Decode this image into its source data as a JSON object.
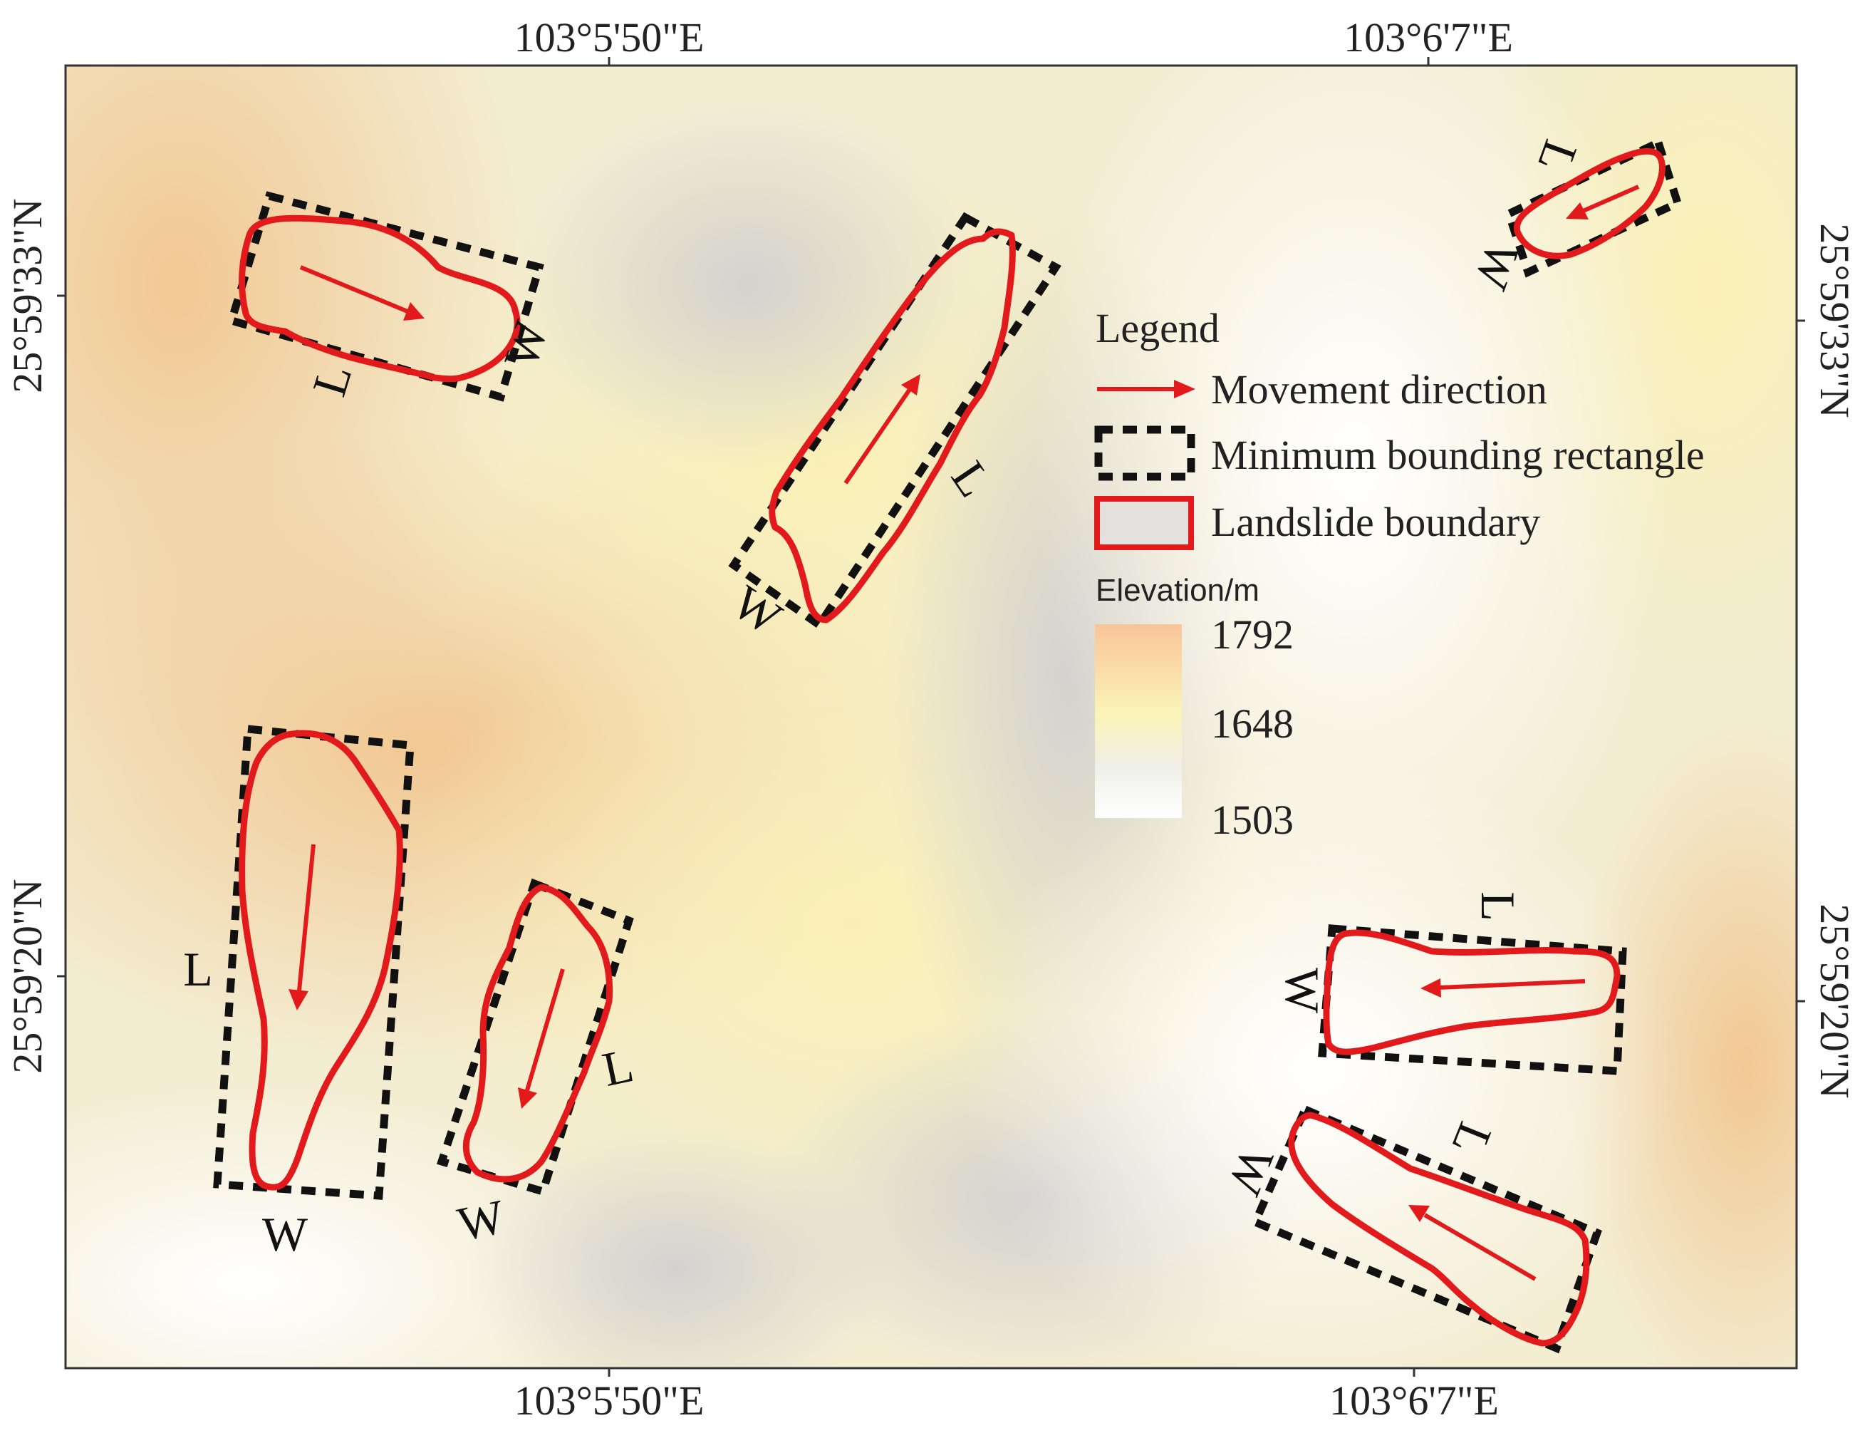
{
  "axes": {
    "top": [
      "103°5'50\"E",
      "103°6'7\"E"
    ],
    "bottom": [
      "103°5'50\"E",
      "103°6'7\"E"
    ],
    "left": [
      "25°59'33\"N",
      "25°59'20\"N"
    ],
    "right": [
      "25°59'33\"N",
      "25°59'20\"N"
    ]
  },
  "legend": {
    "title": "Legend",
    "items": [
      {
        "label": "Movement direction",
        "color": "#e31a1c"
      },
      {
        "label": "Minimum bounding rectangle",
        "color": "#111111"
      },
      {
        "label": "Landslide boundary",
        "color": "#e31a1c"
      }
    ]
  },
  "elevation": {
    "title": "Elevation/m",
    "max": "1792",
    "mid": "1648",
    "min": "1503",
    "colors": [
      "#f9c49a",
      "#fbf3b6",
      "#ffffff"
    ]
  },
  "labels": {
    "length": "L",
    "width": "W"
  }
}
